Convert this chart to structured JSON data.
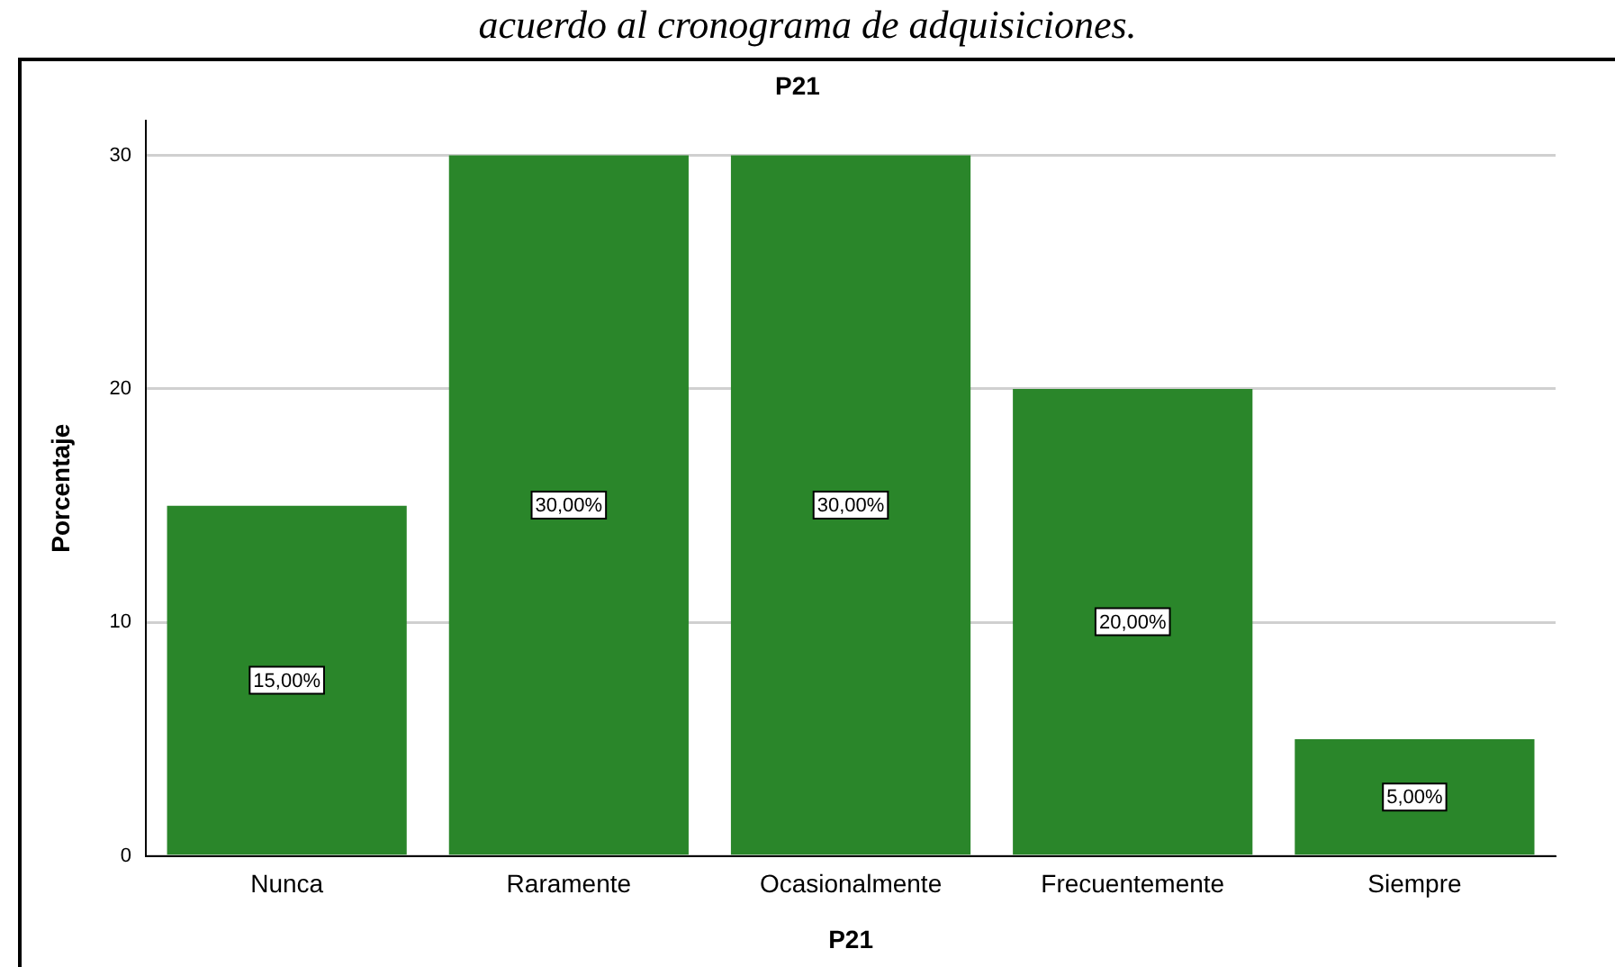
{
  "chart_data": {
    "type": "bar",
    "title": "P21",
    "xlabel": "P21",
    "ylabel": "Porcentaje",
    "annotations": [
      "acuerdo al cronograma de adquisiciones."
    ],
    "categories": [
      "Nunca",
      "Raramente",
      "Ocasionalmente",
      "Frecuentemente",
      "Siempre"
    ],
    "values": [
      15,
      30,
      30,
      20,
      5
    ],
    "color": "#2a862a",
    "value_labels": [
      "15,00%",
      "30,00%",
      "30,00%",
      "20,00%",
      "5,00%"
    ],
    "ylim": [
      0,
      31.5
    ],
    "yticks": [
      0,
      10,
      20,
      30
    ],
    "grid": "y",
    "legend": false
  }
}
